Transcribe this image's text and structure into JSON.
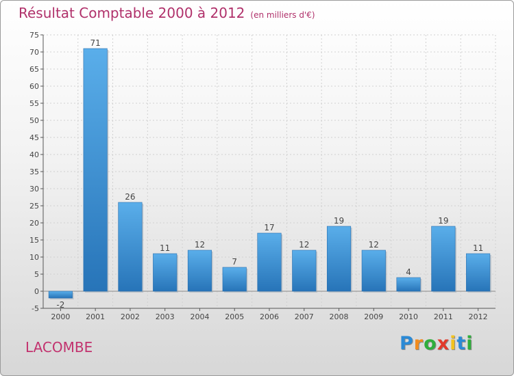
{
  "header": {
    "title": "Résultat Comptable 2000 à 2012",
    "unit": "(en milliers d'€)"
  },
  "commune": "LACOMBE",
  "logo": {
    "letters": [
      "P",
      "r",
      "o",
      "x",
      "i",
      "t",
      "i"
    ],
    "colors": [
      "#2b8ad6",
      "#f28c1e",
      "#2fae3c",
      "#e23a2b",
      "#f2c21e",
      "#2b8ad6",
      "#2fae3c"
    ]
  },
  "chart_data": {
    "type": "bar",
    "title": "Résultat Comptable 2000 à 2012",
    "subtitle": "(en milliers d'€)",
    "xlabel": "",
    "ylabel": "",
    "categories": [
      "2000",
      "2001",
      "2002",
      "2003",
      "2004",
      "2005",
      "2006",
      "2007",
      "2008",
      "2009",
      "2010",
      "2011",
      "2012"
    ],
    "values": [
      -2,
      71,
      26,
      11,
      12,
      7,
      17,
      12,
      19,
      12,
      4,
      19,
      11
    ],
    "ylim": [
      -5,
      75
    ],
    "yticks": [
      -5,
      0,
      5,
      10,
      15,
      20,
      25,
      30,
      35,
      40,
      45,
      50,
      55,
      60,
      65,
      70,
      75
    ],
    "grid": true,
    "bar_color": "#3a8fd8"
  }
}
